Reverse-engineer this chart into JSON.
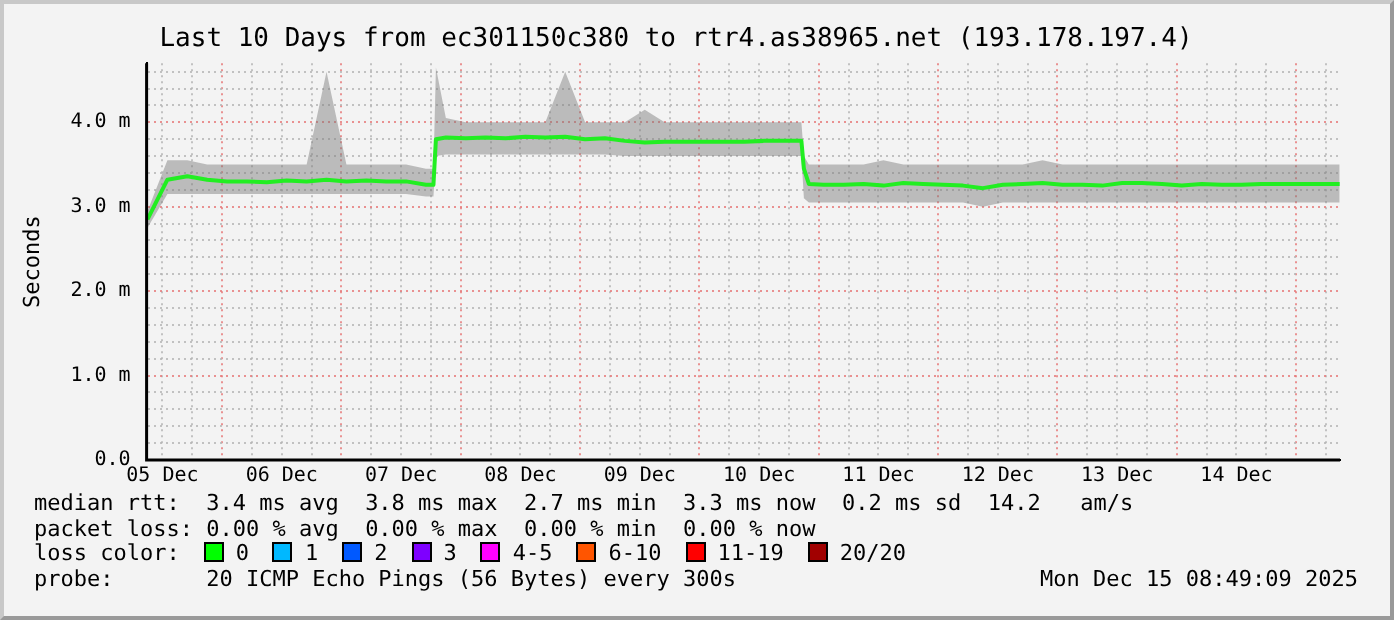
{
  "chart_data": {
    "type": "line",
    "title": "Last 10 Days from ec301150c380 to rtr4.as38965.net (193.178.197.4)",
    "ylabel": "Seconds",
    "x": [
      "2025-12-05T09:00",
      "2025-12-05T13:00",
      "2025-12-05T17:00",
      "2025-12-05T21:00",
      "2025-12-06T01:00",
      "2025-12-06T05:00",
      "2025-12-06T09:00",
      "2025-12-06T13:00",
      "2025-12-06T17:00",
      "2025-12-06T21:00",
      "2025-12-07T01:00",
      "2025-12-07T05:00",
      "2025-12-07T09:00",
      "2025-12-07T13:00",
      "2025-12-07T17:00",
      "2025-12-07T18:30",
      "2025-12-07T19:00",
      "2025-12-07T21:00",
      "2025-12-08T01:00",
      "2025-12-08T05:00",
      "2025-12-08T09:00",
      "2025-12-08T13:00",
      "2025-12-08T17:00",
      "2025-12-08T21:00",
      "2025-12-09T01:00",
      "2025-12-09T05:00",
      "2025-12-09T09:00",
      "2025-12-09T13:00",
      "2025-12-09T17:00",
      "2025-12-09T21:00",
      "2025-12-10T01:00",
      "2025-12-10T05:00",
      "2025-12-10T09:00",
      "2025-12-10T13:00",
      "2025-12-10T17:00",
      "2025-12-10T20:30",
      "2025-12-10T21:00",
      "2025-12-10T22:00",
      "2025-12-11T01:00",
      "2025-12-11T05:00",
      "2025-12-11T09:00",
      "2025-12-11T13:00",
      "2025-12-11T17:00",
      "2025-12-11T21:00",
      "2025-12-12T01:00",
      "2025-12-12T05:00",
      "2025-12-12T09:00",
      "2025-12-12T13:00",
      "2025-12-12T17:00",
      "2025-12-12T21:00",
      "2025-12-13T01:00",
      "2025-12-13T05:00",
      "2025-12-13T09:00",
      "2025-12-13T13:00",
      "2025-12-13T17:00",
      "2025-12-13T21:00",
      "2025-12-14T01:00",
      "2025-12-14T05:00",
      "2025-12-14T09:00",
      "2025-12-14T13:00",
      "2025-12-14T17:00",
      "2025-12-14T21:00",
      "2025-12-15T01:00",
      "2025-12-15T05:00",
      "2025-12-15T08:45"
    ],
    "series": [
      {
        "color": "#22ee22",
        "values": [
          2.85,
          3.32,
          3.36,
          3.32,
          3.3,
          3.3,
          3.29,
          3.31,
          3.3,
          3.32,
          3.3,
          3.31,
          3.3,
          3.3,
          3.26,
          3.26,
          3.8,
          3.82,
          3.81,
          3.82,
          3.81,
          3.83,
          3.82,
          3.83,
          3.8,
          3.81,
          3.78,
          3.76,
          3.77,
          3.77,
          3.77,
          3.77,
          3.77,
          3.78,
          3.78,
          3.78,
          3.45,
          3.27,
          3.26,
          3.26,
          3.27,
          3.25,
          3.28,
          3.27,
          3.26,
          3.25,
          3.22,
          3.26,
          3.27,
          3.28,
          3.26,
          3.26,
          3.25,
          3.28,
          3.28,
          3.27,
          3.25,
          3.27,
          3.26,
          3.26,
          3.27,
          3.27,
          3.27,
          3.27,
          3.27
        ],
        "lower": [
          2.75,
          3.15,
          3.15,
          3.15,
          3.15,
          3.15,
          3.15,
          3.15,
          3.15,
          3.15,
          3.15,
          3.15,
          3.15,
          3.15,
          3.12,
          3.12,
          3.6,
          3.62,
          3.62,
          3.62,
          3.62,
          3.62,
          3.62,
          3.62,
          3.62,
          3.62,
          3.6,
          3.6,
          3.6,
          3.6,
          3.6,
          3.6,
          3.6,
          3.6,
          3.6,
          3.6,
          3.1,
          3.05,
          3.05,
          3.05,
          3.05,
          3.05,
          3.05,
          3.05,
          3.05,
          3.05,
          3.0,
          3.05,
          3.05,
          3.05,
          3.05,
          3.05,
          3.05,
          3.05,
          3.05,
          3.05,
          3.05,
          3.05,
          3.05,
          3.05,
          3.05,
          3.05,
          3.05,
          3.05,
          3.05
        ],
        "upper": [
          2.95,
          3.55,
          3.55,
          3.5,
          3.5,
          3.5,
          3.5,
          3.5,
          3.5,
          4.6,
          3.5,
          3.5,
          3.5,
          3.5,
          3.45,
          3.45,
          4.65,
          4.05,
          4.0,
          4.0,
          4.0,
          4.0,
          4.0,
          4.6,
          4.0,
          4.0,
          4.0,
          4.15,
          4.0,
          4.0,
          4.0,
          4.0,
          4.0,
          4.0,
          4.0,
          4.0,
          3.6,
          3.5,
          3.5,
          3.5,
          3.5,
          3.55,
          3.5,
          3.5,
          3.5,
          3.5,
          3.5,
          3.5,
          3.5,
          3.55,
          3.5,
          3.5,
          3.5,
          3.5,
          3.5,
          3.5,
          3.5,
          3.5,
          3.5,
          3.5,
          3.5,
          3.5,
          3.5,
          3.5,
          3.5
        ]
      }
    ],
    "xlim": [
      "2025-12-05T08:49",
      "2025-12-15T08:49"
    ],
    "xticks": [
      {
        "value": "2025-12-05T12:00",
        "label": "05 Dec"
      },
      {
        "value": "2025-12-05T18:00",
        "label": null
      },
      {
        "value": "2025-12-06T00:00",
        "label": null
      },
      {
        "value": "2025-12-06T06:00",
        "label": null
      },
      {
        "value": "2025-12-06T12:00",
        "label": "06 Dec"
      },
      {
        "value": "2025-12-06T18:00",
        "label": null
      },
      {
        "value": "2025-12-07T00:00",
        "label": null
      },
      {
        "value": "2025-12-07T06:00",
        "label": null
      },
      {
        "value": "2025-12-07T12:00",
        "label": "07 Dec"
      },
      {
        "value": "2025-12-07T18:00",
        "label": null
      },
      {
        "value": "2025-12-08T00:00",
        "label": null
      },
      {
        "value": "2025-12-08T06:00",
        "label": null
      },
      {
        "value": "2025-12-08T12:00",
        "label": "08 Dec"
      },
      {
        "value": "2025-12-08T18:00",
        "label": null
      },
      {
        "value": "2025-12-09T00:00",
        "label": null
      },
      {
        "value": "2025-12-09T06:00",
        "label": null
      },
      {
        "value": "2025-12-09T12:00",
        "label": "09 Dec"
      },
      {
        "value": "2025-12-09T18:00",
        "label": null
      },
      {
        "value": "2025-12-10T00:00",
        "label": null
      },
      {
        "value": "2025-12-10T06:00",
        "label": null
      },
      {
        "value": "2025-12-10T12:00",
        "label": "10 Dec"
      },
      {
        "value": "2025-12-10T18:00",
        "label": null
      },
      {
        "value": "2025-12-11T00:00",
        "label": null
      },
      {
        "value": "2025-12-11T06:00",
        "label": null
      },
      {
        "value": "2025-12-11T12:00",
        "label": "11 Dec"
      },
      {
        "value": "2025-12-11T18:00",
        "label": null
      },
      {
        "value": "2025-12-12T00:00",
        "label": null
      },
      {
        "value": "2025-12-12T06:00",
        "label": null
      },
      {
        "value": "2025-12-12T12:00",
        "label": "12 Dec"
      },
      {
        "value": "2025-12-12T18:00",
        "label": null
      },
      {
        "value": "2025-12-13T00:00",
        "label": null
      },
      {
        "value": "2025-12-13T06:00",
        "label": null
      },
      {
        "value": "2025-12-13T12:00",
        "label": "13 Dec"
      },
      {
        "value": "2025-12-13T18:00",
        "label": null
      },
      {
        "value": "2025-12-14T00:00",
        "label": null
      },
      {
        "value": "2025-12-14T06:00",
        "label": null
      },
      {
        "value": "2025-12-14T12:00",
        "label": "14 Dec"
      },
      {
        "value": "2025-12-14T18:00",
        "label": null
      },
      {
        "value": "2025-12-15T00:00",
        "label": null
      },
      {
        "value": "2025-12-15T06:00",
        "label": null
      }
    ],
    "ylim": [
      0,
      4.7
    ],
    "yticks": [
      {
        "value": 0,
        "label": "0.0"
      },
      {
        "value": 0.2,
        "label": null
      },
      {
        "value": 0.4,
        "label": null
      },
      {
        "value": 0.6,
        "label": null
      },
      {
        "value": 0.8,
        "label": null
      },
      {
        "value": 1,
        "label": "1.0 m"
      },
      {
        "value": 1.2,
        "label": null
      },
      {
        "value": 1.4,
        "label": null
      },
      {
        "value": 1.6,
        "label": null
      },
      {
        "value": 1.8,
        "label": null
      },
      {
        "value": 2,
        "label": "2.0 m"
      },
      {
        "value": 2.2,
        "label": null
      },
      {
        "value": 2.4,
        "label": null
      },
      {
        "value": 2.6,
        "label": null
      },
      {
        "value": 2.8,
        "label": null
      },
      {
        "value": 3,
        "label": "3.0 m"
      },
      {
        "value": 3.2,
        "label": null
      },
      {
        "value": 3.4,
        "label": null
      },
      {
        "value": 3.6,
        "label": null
      },
      {
        "value": 3.8,
        "label": null
      },
      {
        "value": 4,
        "label": "4.0 m"
      },
      {
        "value": 4.2,
        "label": null
      },
      {
        "value": 4.4,
        "label": null
      },
      {
        "value": 4.6,
        "label": null
      }
    ],
    "grid": true,
    "marker": "none",
    "line_style": "solid",
    "annotations": [
      "median rtt:  3.4 ms avg  3.8 ms max  2.7 ms min  3.3 ms now  0.2 ms sd  14.2   am/s",
      "packet loss: 0.00 % avg  0.00 % max  0.00 % min  0.00 % now",
      "loss color:",
      "0",
      "1",
      "2",
      "3",
      "4-5",
      "6-10",
      "11-19",
      "20/20",
      "probe:       20 ICMP Echo Pings (56 Bytes) every 300s",
      "Mon Dec 15 08:49:09 2025"
    ]
  }
}
